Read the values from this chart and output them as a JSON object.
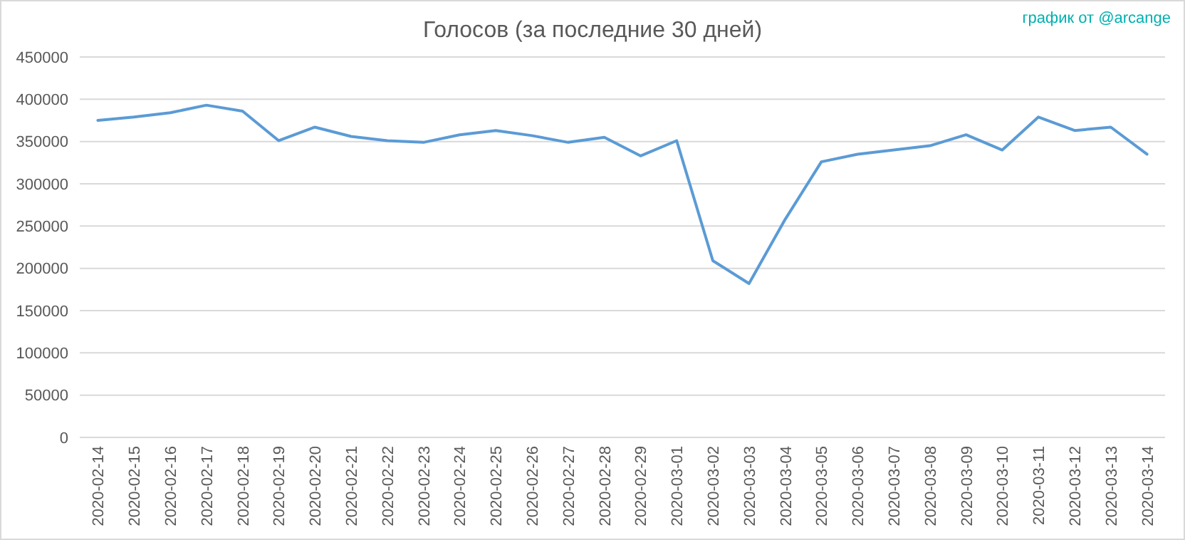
{
  "chart_data": {
    "type": "line",
    "title": "Голосов (за последние 30 дней)",
    "annotations": [
      "график от @arcange"
    ],
    "categories": [
      "2020-02-14",
      "2020-02-15",
      "2020-02-16",
      "2020-02-17",
      "2020-02-18",
      "2020-02-19",
      "2020-02-20",
      "2020-02-21",
      "2020-02-22",
      "2020-02-23",
      "2020-02-24",
      "2020-02-25",
      "2020-02-26",
      "2020-02-27",
      "2020-02-28",
      "2020-02-29",
      "2020-03-01",
      "2020-03-02",
      "2020-03-03",
      "2020-03-04",
      "2020-03-05",
      "2020-03-06",
      "2020-03-07",
      "2020-03-08",
      "2020-03-09",
      "2020-03-10",
      "2020-03-11",
      "2020-03-12",
      "2020-03-13",
      "2020-03-14"
    ],
    "series": [
      {
        "color": "#5b9bd5",
        "values": [
          375000,
          379000,
          384000,
          393000,
          386000,
          351000,
          367000,
          356000,
          351000,
          349000,
          358000,
          363000,
          357000,
          349000,
          355000,
          333000,
          351000,
          209000,
          182000,
          258000,
          326000,
          335000,
          340000,
          345000,
          358000,
          340000,
          379000,
          363000,
          367000,
          335000
        ]
      }
    ],
    "ylim": [
      0,
      450000
    ],
    "yticks": [
      0,
      50000,
      100000,
      150000,
      200000,
      250000,
      300000,
      350000,
      400000,
      450000
    ],
    "grid": "y",
    "marker": "none",
    "line_style": "solid"
  }
}
